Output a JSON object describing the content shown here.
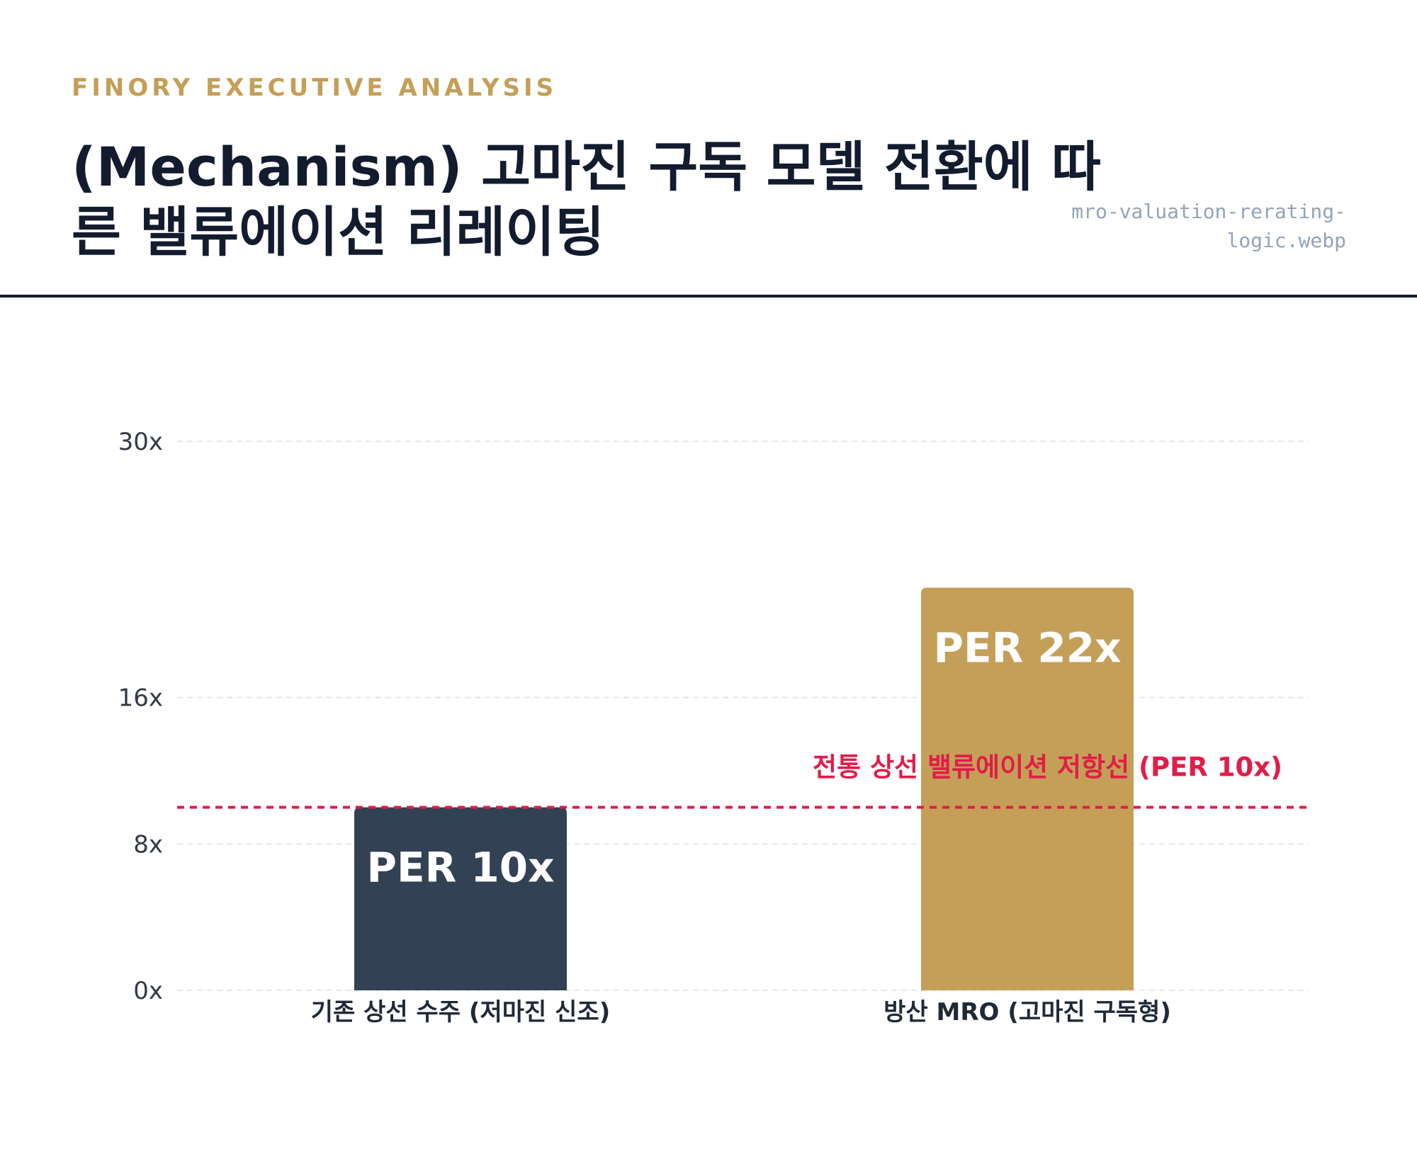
{
  "header": {
    "eyebrow": "FINORY EXECUTIVE ANALYSIS",
    "title": "(Mechanism) 고마진 구독 모델 전환에 따른 밸류에이션 리레이팅",
    "filename": "mro-valuation-rerating-logic.webp"
  },
  "chart_data": {
    "type": "bar",
    "categories": [
      "기존 상선 수주 (저마진 신조)",
      "방산 MRO (고마진 구독형)"
    ],
    "values": [
      10,
      22
    ],
    "data_labels": [
      "PER 10x",
      "PER 22x"
    ],
    "colors": [
      "#334155",
      "#c49f58"
    ],
    "y_ticks": [
      0,
      8,
      16,
      30
    ],
    "y_tick_labels": [
      "0x",
      "8x",
      "16x",
      "30x"
    ],
    "ylim": [
      0,
      30
    ],
    "grid": true,
    "reference_line": {
      "value": 10,
      "label": "전통 상선 밸류에이션 저항선 (PER 10x)",
      "color": "#e11d48"
    }
  }
}
